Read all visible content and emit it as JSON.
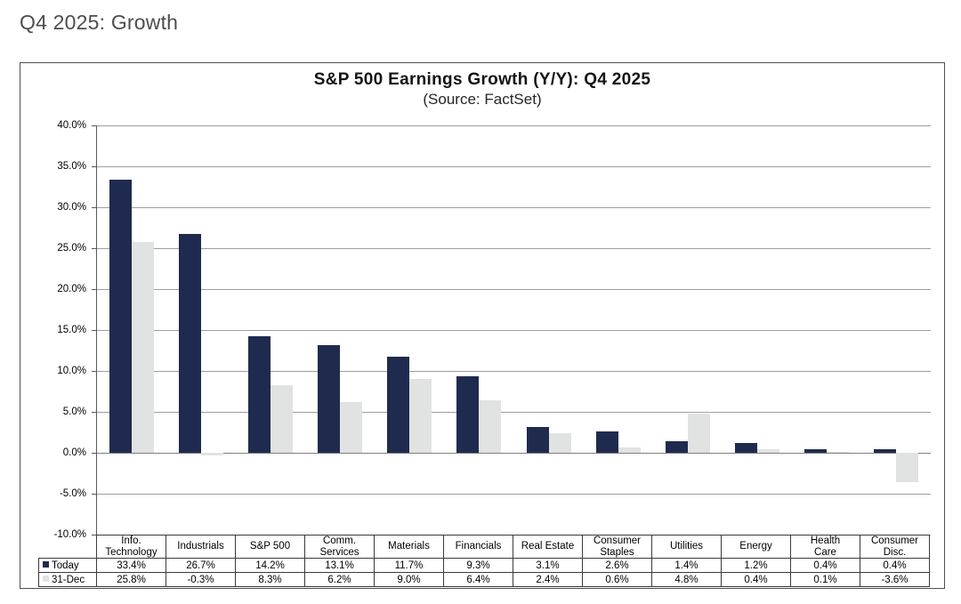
{
  "page": {
    "title": "Q4 2025: Growth"
  },
  "chart_data": {
    "type": "bar",
    "title": "S&P 500 Earnings Growth (Y/Y): Q4 2025",
    "subtitle": "(Source: FactSet)",
    "categories": [
      "Info. Technology",
      "Industrials",
      "S&P 500",
      "Comm. Services",
      "Materials",
      "Financials",
      "Real Estate",
      "Consumer Staples",
      "Utilities",
      "Energy",
      "Health Care",
      "Consumer Disc."
    ],
    "categories_display": [
      "Info.\nTechnology",
      "Industrials",
      "S&P 500",
      "Comm.\nServices",
      "Materials",
      "Financials",
      "Real Estate",
      "Consumer\nStaples",
      "Utilities",
      "Energy",
      "Health\nCare",
      "Consumer\nDisc."
    ],
    "series": [
      {
        "name": "Today",
        "color": "#1f2b4e",
        "values": [
          33.4,
          26.7,
          14.2,
          13.1,
          11.7,
          9.3,
          3.1,
          2.6,
          1.4,
          1.2,
          0.4,
          0.4
        ]
      },
      {
        "name": "31-Dec",
        "color": "#e1e3e3",
        "values": [
          25.8,
          -0.3,
          8.3,
          6.2,
          9.0,
          6.4,
          2.4,
          0.6,
          4.8,
          0.4,
          0.1,
          -3.6
        ]
      }
    ],
    "ylabel": "",
    "xlabel": "",
    "ylim": [
      -10,
      40
    ],
    "ytick_step": 5,
    "ytick_labels": [
      "40.0%",
      "35.0%",
      "30.0%",
      "25.0%",
      "20.0%",
      "15.0%",
      "10.0%",
      "5.0%",
      "0.0%",
      "-5.0%",
      "-10.0%"
    ],
    "grid": true,
    "legend_position": "data-table-left",
    "value_suffix": "%"
  }
}
